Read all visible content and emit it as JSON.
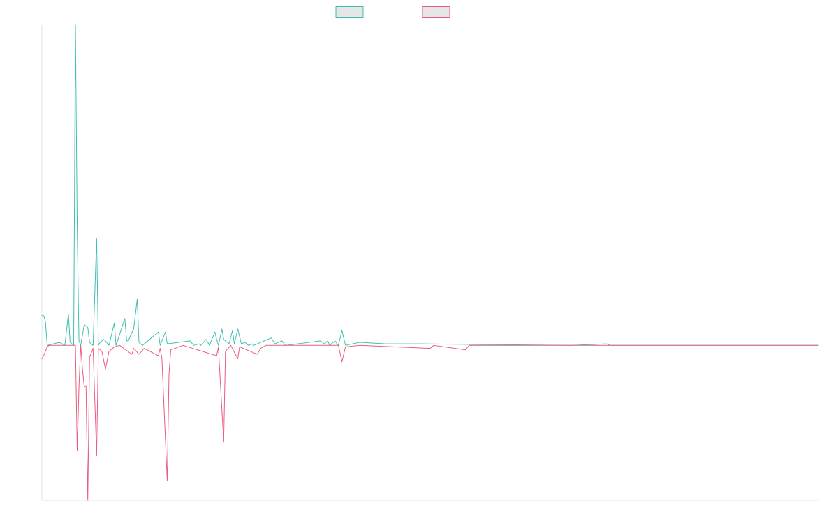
{
  "chart_data": {
    "type": "line",
    "title": "",
    "xlabel": "",
    "ylabel": "",
    "x_domain": [
      0,
      440
    ],
    "ylim": [
      -520,
      1075
    ],
    "baseline": 0,
    "grid": false,
    "axis_ticks_visible": false,
    "legend": {
      "placement": "top-center",
      "entries": [
        {
          "name": "",
          "stroke": "#3fbfb0",
          "fill": "#e6e6e6"
        },
        {
          "name": "",
          "stroke": "#ea5c7e",
          "fill": "#e6e6e6"
        }
      ]
    },
    "series": [
      {
        "name": "",
        "color": "#3fbfb0",
        "points": [
          [
            0,
            100
          ],
          [
            1,
            100
          ],
          [
            2,
            80
          ],
          [
            3,
            0
          ],
          [
            10,
            10
          ],
          [
            13,
            0
          ],
          [
            15,
            105
          ],
          [
            16,
            10
          ],
          [
            18,
            0
          ],
          [
            19,
            1075
          ],
          [
            20,
            400
          ],
          [
            21,
            15
          ],
          [
            22,
            0
          ],
          [
            24,
            70
          ],
          [
            25,
            65
          ],
          [
            26,
            60
          ],
          [
            27,
            10
          ],
          [
            29,
            0
          ],
          [
            31,
            360
          ],
          [
            32,
            0
          ],
          [
            33,
            10
          ],
          [
            35,
            20
          ],
          [
            36,
            15
          ],
          [
            38,
            0
          ],
          [
            41,
            75
          ],
          [
            42,
            0
          ],
          [
            47,
            90
          ],
          [
            48,
            15
          ],
          [
            49,
            15
          ],
          [
            50,
            30
          ],
          [
            52,
            55
          ],
          [
            54,
            155
          ],
          [
            55,
            10
          ],
          [
            57,
            0
          ],
          [
            66,
            45
          ],
          [
            67,
            0
          ],
          [
            70,
            45
          ],
          [
            71,
            5
          ],
          [
            84,
            15
          ],
          [
            86,
            0
          ],
          [
            89,
            5
          ],
          [
            90,
            0
          ],
          [
            93,
            20
          ],
          [
            95,
            0
          ],
          [
            98,
            45
          ],
          [
            99,
            20
          ],
          [
            100,
            0
          ],
          [
            102,
            55
          ],
          [
            103,
            20
          ],
          [
            104,
            15
          ],
          [
            106,
            5
          ],
          [
            108,
            50
          ],
          [
            109,
            5
          ],
          [
            111,
            55
          ],
          [
            113,
            5
          ],
          [
            115,
            10
          ],
          [
            117,
            0
          ],
          [
            119,
            5
          ],
          [
            120,
            0
          ],
          [
            130,
            25
          ],
          [
            132,
            5
          ],
          [
            136,
            15
          ],
          [
            138,
            0
          ],
          [
            158,
            15
          ],
          [
            160,
            5
          ],
          [
            162,
            15
          ],
          [
            163,
            0
          ],
          [
            166,
            15
          ],
          [
            168,
            0
          ],
          [
            170,
            50
          ],
          [
            172,
            0
          ],
          [
            180,
            10
          ],
          [
            195,
            5
          ],
          [
            215,
            5
          ],
          [
            300,
            0
          ],
          [
            320,
            5
          ],
          [
            322,
            0
          ],
          [
            440,
            0
          ]
        ]
      },
      {
        "name": "",
        "color": "#ea5c7e",
        "points": [
          [
            0,
            -45
          ],
          [
            1,
            -35
          ],
          [
            3,
            -5
          ],
          [
            4,
            0
          ],
          [
            11,
            0
          ],
          [
            14,
            0
          ],
          [
            19,
            0
          ],
          [
            20,
            -355
          ],
          [
            21,
            -140
          ],
          [
            22,
            0
          ],
          [
            23,
            -80
          ],
          [
            24,
            -140
          ],
          [
            25,
            -135
          ],
          [
            26,
            -520
          ],
          [
            27,
            -40
          ],
          [
            29,
            -10
          ],
          [
            31,
            -370
          ],
          [
            32,
            -10
          ],
          [
            34,
            -20
          ],
          [
            36,
            -80
          ],
          [
            38,
            -20
          ],
          [
            41,
            -5
          ],
          [
            44,
            0
          ],
          [
            51,
            -30
          ],
          [
            52,
            -10
          ],
          [
            55,
            -30
          ],
          [
            58,
            -10
          ],
          [
            66,
            -35
          ],
          [
            67,
            -10
          ],
          [
            68,
            -45
          ],
          [
            71,
            -455
          ],
          [
            72,
            -100
          ],
          [
            73,
            -15
          ],
          [
            80,
            0
          ],
          [
            99,
            -35
          ],
          [
            100,
            -5
          ],
          [
            103,
            -325
          ],
          [
            104,
            -20
          ],
          [
            107,
            0
          ],
          [
            111,
            -45
          ],
          [
            112,
            -5
          ],
          [
            122,
            -30
          ],
          [
            124,
            -10
          ],
          [
            127,
            0
          ],
          [
            168,
            0
          ],
          [
            170,
            -55
          ],
          [
            172,
            -5
          ],
          [
            180,
            0
          ],
          [
            220,
            -10
          ],
          [
            222,
            0
          ],
          [
            240,
            -15
          ],
          [
            242,
            0
          ],
          [
            440,
            0
          ]
        ]
      }
    ]
  }
}
